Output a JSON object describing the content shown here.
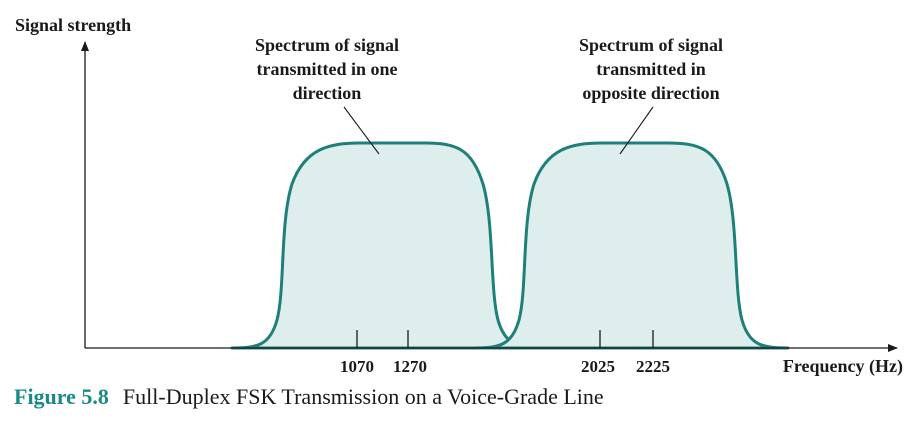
{
  "y_axis_label": "Signal strength",
  "x_axis_label": "Frequency (Hz)",
  "spectra": [
    {
      "annotation": [
        "Spectrum of signal",
        "transmitted in one",
        "direction"
      ],
      "ticks": [
        "1070",
        "1270"
      ]
    },
    {
      "annotation": [
        "Spectrum of signal",
        "transmitted in",
        "opposite direction"
      ],
      "ticks": [
        "2025",
        "2225"
      ]
    }
  ],
  "caption": {
    "label": "Figure 5.8",
    "text": "Full-Duplex FSK Transmission on a Voice-Grade Line"
  },
  "colors": {
    "curve_stroke": "#1f7f7b",
    "curve_fill": "#ddeeed",
    "caption_label": "#1a8a86"
  }
}
